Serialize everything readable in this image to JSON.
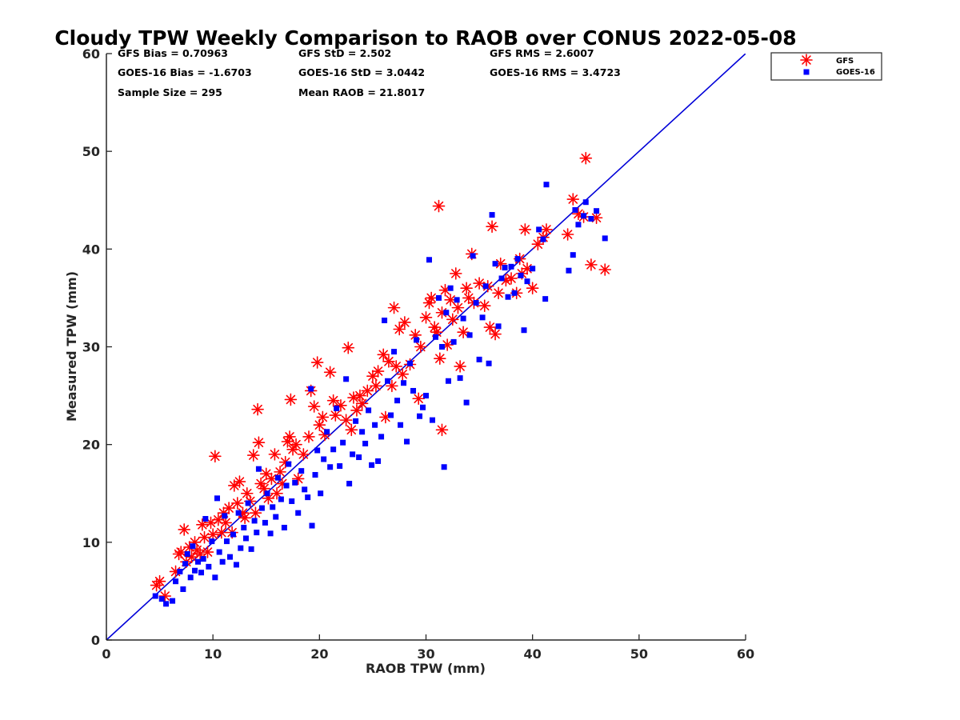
{
  "chart_data": {
    "type": "scatter",
    "title": "Cloudy TPW Weekly Comparison to RAOB over CONUS 2022-05-08",
    "xlabel": "RAOB TPW (mm)",
    "ylabel": "Measured TPW (mm)",
    "xlim": [
      0,
      60
    ],
    "ylim": [
      0,
      60
    ],
    "xticks": [
      "0",
      "10",
      "20",
      "30",
      "40",
      "50",
      "60"
    ],
    "yticks": [
      "0",
      "10",
      "20",
      "30",
      "40",
      "50",
      "60"
    ],
    "grid": false,
    "legend_position": "top-right outside",
    "stats": {
      "gfs_bias": "GFS Bias = 0.70963",
      "gfs_std": "GFS StD = 2.502",
      "gfs_rms": "GFS RMS = 2.6007",
      "goes_bias": "GOES-16 Bias = -1.6703",
      "goes_std": "GOES-16 StD = 3.0442",
      "goes_rms": "GOES-16 RMS = 3.4723",
      "sample_size": "Sample Size = 295",
      "mean_raob": "Mean RAOB = 21.8017"
    },
    "reference_line": {
      "x": [
        0,
        60
      ],
      "y": [
        0,
        60
      ],
      "color": "#0000d8"
    },
    "series": [
      {
        "name": "GFS",
        "marker": "asterisk",
        "color": "#ff0000",
        "points": [
          [
            4.7,
            5.6
          ],
          [
            5.0,
            6.0
          ],
          [
            5.5,
            4.5
          ],
          [
            6.5,
            7.0
          ],
          [
            6.8,
            8.8
          ],
          [
            7.0,
            9.0
          ],
          [
            7.3,
            11.3
          ],
          [
            7.5,
            8.0
          ],
          [
            7.8,
            9.5
          ],
          [
            8.0,
            8.5
          ],
          [
            8.3,
            10.0
          ],
          [
            8.5,
            9.2
          ],
          [
            8.8,
            8.8
          ],
          [
            9.0,
            11.8
          ],
          [
            9.2,
            10.5
          ],
          [
            9.5,
            9.0
          ],
          [
            9.8,
            12.0
          ],
          [
            10.0,
            10.8
          ],
          [
            10.2,
            18.8
          ],
          [
            10.5,
            12.3
          ],
          [
            10.8,
            11.0
          ],
          [
            11.0,
            13.0
          ],
          [
            11.2,
            12.0
          ],
          [
            11.5,
            13.5
          ],
          [
            11.8,
            11.0
          ],
          [
            12.0,
            15.8
          ],
          [
            12.3,
            14.0
          ],
          [
            12.5,
            16.2
          ],
          [
            12.8,
            13.0
          ],
          [
            13.0,
            12.5
          ],
          [
            13.2,
            15.0
          ],
          [
            13.5,
            14.2
          ],
          [
            13.8,
            18.9
          ],
          [
            14.0,
            13.0
          ],
          [
            14.2,
            23.6
          ],
          [
            14.3,
            20.2
          ],
          [
            14.5,
            16.0
          ],
          [
            14.8,
            15.5
          ],
          [
            15.0,
            17.0
          ],
          [
            15.2,
            14.5
          ],
          [
            15.5,
            16.5
          ],
          [
            15.8,
            19.0
          ],
          [
            16.0,
            15.0
          ],
          [
            16.3,
            17.2
          ],
          [
            16.5,
            16.0
          ],
          [
            16.8,
            18.2
          ],
          [
            17.0,
            20.3
          ],
          [
            17.2,
            20.8
          ],
          [
            17.3,
            24.6
          ],
          [
            17.5,
            19.5
          ],
          [
            17.8,
            20.0
          ],
          [
            18.0,
            16.5
          ],
          [
            18.5,
            19.0
          ],
          [
            19.0,
            20.8
          ],
          [
            19.2,
            25.5
          ],
          [
            19.5,
            23.9
          ],
          [
            19.8,
            28.4
          ],
          [
            20.0,
            22.0
          ],
          [
            20.3,
            22.8
          ],
          [
            20.5,
            21.0
          ],
          [
            21.0,
            27.4
          ],
          [
            21.3,
            24.5
          ],
          [
            21.5,
            23.0
          ],
          [
            22.0,
            24.0
          ],
          [
            22.5,
            22.5
          ],
          [
            22.7,
            29.9
          ],
          [
            23.0,
            21.5
          ],
          [
            23.2,
            24.8
          ],
          [
            23.5,
            23.5
          ],
          [
            23.8,
            25.0
          ],
          [
            24.0,
            24.2
          ],
          [
            24.5,
            25.5
          ],
          [
            25.0,
            27.0
          ],
          [
            25.3,
            26.0
          ],
          [
            25.5,
            27.5
          ],
          [
            26.0,
            29.2
          ],
          [
            26.2,
            22.8
          ],
          [
            26.5,
            28.5
          ],
          [
            26.8,
            26.0
          ],
          [
            27.0,
            34.0
          ],
          [
            27.2,
            28.0
          ],
          [
            27.5,
            31.8
          ],
          [
            27.8,
            27.2
          ],
          [
            28.0,
            32.5
          ],
          [
            28.5,
            28.2
          ],
          [
            29.0,
            31.2
          ],
          [
            29.3,
            24.7
          ],
          [
            29.5,
            30.0
          ],
          [
            30.0,
            33.0
          ],
          [
            30.3,
            34.5
          ],
          [
            30.5,
            35.0
          ],
          [
            30.8,
            32.0
          ],
          [
            31.0,
            31.5
          ],
          [
            31.2,
            44.4
          ],
          [
            31.3,
            28.8
          ],
          [
            31.5,
            21.5
          ],
          [
            31.5,
            33.5
          ],
          [
            31.8,
            35.8
          ],
          [
            32.0,
            30.2
          ],
          [
            32.3,
            34.8
          ],
          [
            32.5,
            32.8
          ],
          [
            32.8,
            37.5
          ],
          [
            33.0,
            34.0
          ],
          [
            33.2,
            28.0
          ],
          [
            33.5,
            31.5
          ],
          [
            33.8,
            36.0
          ],
          [
            34.0,
            35.0
          ],
          [
            34.3,
            39.5
          ],
          [
            34.5,
            34.5
          ],
          [
            35.0,
            36.5
          ],
          [
            35.5,
            34.2
          ],
          [
            35.8,
            36.2
          ],
          [
            36.0,
            32.0
          ],
          [
            36.2,
            42.3
          ],
          [
            36.5,
            31.3
          ],
          [
            36.8,
            35.5
          ],
          [
            37.0,
            38.5
          ],
          [
            37.5,
            36.8
          ],
          [
            38.0,
            37.0
          ],
          [
            38.5,
            35.5
          ],
          [
            38.8,
            39.0
          ],
          [
            39.0,
            37.5
          ],
          [
            39.3,
            42.0
          ],
          [
            39.5,
            38.0
          ],
          [
            40.0,
            36.0
          ],
          [
            40.5,
            40.5
          ],
          [
            41.0,
            41.2
          ],
          [
            41.3,
            42.0
          ],
          [
            43.3,
            41.5
          ],
          [
            43.8,
            45.1
          ],
          [
            44.3,
            43.6
          ],
          [
            44.8,
            43.3
          ],
          [
            45.0,
            49.3
          ],
          [
            45.5,
            38.4
          ],
          [
            46.0,
            43.2
          ],
          [
            46.8,
            37.9
          ]
        ]
      },
      {
        "name": "GOES-16",
        "marker": "square",
        "color": "#0000ff",
        "points": [
          [
            4.6,
            4.5
          ],
          [
            5.2,
            4.2
          ],
          [
            5.6,
            3.7
          ],
          [
            6.2,
            4.0
          ],
          [
            6.5,
            6.0
          ],
          [
            6.9,
            7.0
          ],
          [
            7.2,
            5.2
          ],
          [
            7.4,
            7.8
          ],
          [
            7.6,
            8.8
          ],
          [
            7.9,
            6.4
          ],
          [
            8.1,
            9.6
          ],
          [
            8.3,
            7.1
          ],
          [
            8.6,
            8.0
          ],
          [
            8.9,
            6.9
          ],
          [
            9.1,
            8.3
          ],
          [
            9.3,
            12.4
          ],
          [
            9.6,
            7.5
          ],
          [
            9.9,
            10.1
          ],
          [
            10.2,
            6.4
          ],
          [
            10.4,
            14.5
          ],
          [
            10.6,
            9.0
          ],
          [
            10.9,
            8.0
          ],
          [
            11.1,
            12.7
          ],
          [
            11.3,
            10.1
          ],
          [
            11.6,
            8.5
          ],
          [
            11.9,
            10.8
          ],
          [
            12.2,
            7.7
          ],
          [
            12.4,
            13.0
          ],
          [
            12.6,
            9.4
          ],
          [
            12.9,
            11.5
          ],
          [
            13.1,
            10.4
          ],
          [
            13.3,
            14.0
          ],
          [
            13.6,
            9.3
          ],
          [
            13.9,
            12.2
          ],
          [
            14.1,
            11.0
          ],
          [
            14.3,
            17.5
          ],
          [
            14.6,
            13.5
          ],
          [
            14.9,
            12.0
          ],
          [
            15.1,
            15.0
          ],
          [
            15.4,
            10.9
          ],
          [
            15.6,
            13.6
          ],
          [
            15.9,
            12.6
          ],
          [
            16.1,
            16.6
          ],
          [
            16.4,
            14.4
          ],
          [
            16.7,
            11.5
          ],
          [
            16.9,
            15.8
          ],
          [
            17.1,
            18.0
          ],
          [
            17.4,
            14.2
          ],
          [
            17.7,
            16.1
          ],
          [
            18.0,
            13.0
          ],
          [
            18.3,
            17.3
          ],
          [
            18.6,
            15.4
          ],
          [
            18.9,
            14.6
          ],
          [
            19.2,
            25.7
          ],
          [
            19.3,
            11.7
          ],
          [
            19.6,
            16.9
          ],
          [
            19.8,
            19.4
          ],
          [
            20.1,
            15.0
          ],
          [
            20.4,
            18.5
          ],
          [
            20.7,
            21.3
          ],
          [
            21.0,
            17.7
          ],
          [
            21.3,
            19.5
          ],
          [
            21.6,
            23.7
          ],
          [
            21.9,
            17.8
          ],
          [
            22.2,
            20.2
          ],
          [
            22.5,
            26.7
          ],
          [
            22.8,
            16.0
          ],
          [
            23.1,
            19.0
          ],
          [
            23.4,
            22.4
          ],
          [
            23.7,
            18.7
          ],
          [
            24.0,
            21.3
          ],
          [
            24.3,
            20.1
          ],
          [
            24.6,
            23.5
          ],
          [
            24.9,
            17.9
          ],
          [
            25.2,
            22.0
          ],
          [
            25.5,
            18.3
          ],
          [
            25.8,
            20.8
          ],
          [
            26.1,
            32.7
          ],
          [
            26.4,
            26.5
          ],
          [
            26.7,
            23.0
          ],
          [
            27.0,
            29.5
          ],
          [
            27.3,
            24.5
          ],
          [
            27.6,
            22.0
          ],
          [
            27.9,
            26.3
          ],
          [
            28.2,
            20.3
          ],
          [
            28.5,
            28.3
          ],
          [
            28.8,
            25.5
          ],
          [
            29.1,
            30.7
          ],
          [
            29.4,
            22.9
          ],
          [
            29.7,
            23.8
          ],
          [
            30.0,
            25.0
          ],
          [
            30.3,
            38.9
          ],
          [
            30.6,
            22.5
          ],
          [
            30.9,
            31.0
          ],
          [
            31.2,
            35.0
          ],
          [
            31.5,
            30.0
          ],
          [
            31.7,
            17.7
          ],
          [
            31.9,
            33.5
          ],
          [
            32.1,
            26.5
          ],
          [
            32.3,
            36.0
          ],
          [
            32.6,
            30.5
          ],
          [
            32.9,
            34.8
          ],
          [
            33.2,
            26.8
          ],
          [
            33.5,
            32.9
          ],
          [
            33.8,
            24.3
          ],
          [
            34.1,
            31.2
          ],
          [
            34.4,
            39.3
          ],
          [
            34.7,
            34.5
          ],
          [
            35.0,
            28.7
          ],
          [
            35.3,
            33.0
          ],
          [
            35.6,
            36.2
          ],
          [
            35.9,
            28.3
          ],
          [
            36.2,
            43.5
          ],
          [
            36.5,
            38.5
          ],
          [
            36.8,
            32.1
          ],
          [
            37.1,
            37.0
          ],
          [
            37.4,
            38.1
          ],
          [
            37.7,
            35.1
          ],
          [
            38.0,
            38.2
          ],
          [
            38.3,
            35.5
          ],
          [
            38.6,
            39.0
          ],
          [
            38.9,
            37.3
          ],
          [
            39.2,
            31.7
          ],
          [
            39.5,
            36.7
          ],
          [
            40.0,
            38.0
          ],
          [
            40.6,
            42.0
          ],
          [
            41.0,
            41.0
          ],
          [
            41.2,
            34.9
          ],
          [
            41.3,
            46.6
          ],
          [
            43.4,
            37.8
          ],
          [
            43.8,
            39.4
          ],
          [
            44.0,
            44.0
          ],
          [
            44.3,
            42.5
          ],
          [
            44.8,
            43.4
          ],
          [
            45.0,
            44.8
          ],
          [
            45.5,
            43.1
          ],
          [
            46.0,
            43.9
          ],
          [
            46.8,
            41.1
          ]
        ]
      }
    ]
  }
}
